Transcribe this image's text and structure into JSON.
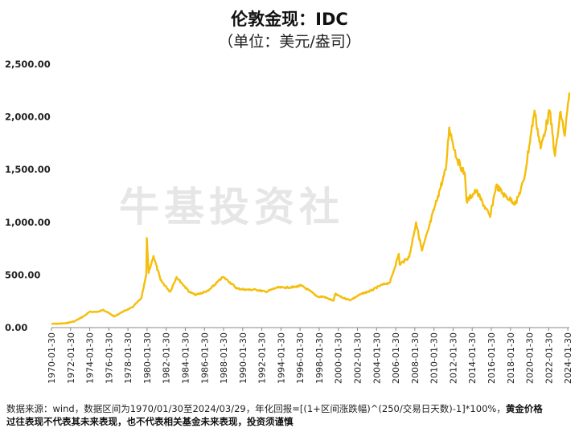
{
  "chart_data": {
    "type": "line",
    "title": "伦敦金现：IDC",
    "subtitle": "（单位：美元/盎司）",
    "ylabel": "",
    "xlabel": "",
    "ylim": [
      0,
      2500
    ],
    "xlim": [
      "1970-01-30",
      "2024-03-29"
    ],
    "y_ticks": [
      "0.00",
      "500.00",
      "1,000.00",
      "1,500.00",
      "2,000.00",
      "2,500.00"
    ],
    "x_ticks": [
      "1970-01-30",
      "1972-01-30",
      "1974-01-30",
      "1976-01-30",
      "1978-01-30",
      "1980-01-30",
      "1982-01-30",
      "1984-01-30",
      "1986-01-30",
      "1988-01-30",
      "1990-01-30",
      "1992-01-30",
      "1994-01-30",
      "1996-01-30",
      "1998-01-30",
      "2000-01-30",
      "2002-01-30",
      "2004-01-30",
      "2006-01-30",
      "2008-01-30",
      "2010-01-30",
      "2012-01-30",
      "2014-01-30",
      "2016-01-30",
      "2018-01-30",
      "2020-01-30",
      "2022-01-30",
      "2024-01-30"
    ],
    "grid": false,
    "color": "#F5BE0B",
    "series": [
      {
        "x": [
          "1970-01-30",
          "1971-06-30",
          "1972-06-30",
          "1973-06-30",
          "1974-01-30",
          "1974-12-30",
          "1975-06-30",
          "1976-08-30",
          "1977-06-30",
          "1978-06-30",
          "1979-06-30",
          "1979-12-30",
          "1980-01-21",
          "1980-03-30",
          "1980-09-30",
          "1981-06-30",
          "1982-06-30",
          "1983-02-28",
          "1984-06-30",
          "1985-02-28",
          "1986-06-30",
          "1987-12-30",
          "1988-06-30",
          "1989-06-30",
          "1990-06-30",
          "1991-06-30",
          "1992-06-30",
          "1993-08-30",
          "1994-06-30",
          "1995-06-30",
          "1996-02-28",
          "1997-01-30",
          "1997-12-30",
          "1998-06-30",
          "1999-07-30",
          "1999-10-05",
          "2000-06-30",
          "2001-04-30",
          "2002-06-30",
          "2003-06-30",
          "2004-06-30",
          "2005-06-30",
          "2006-05-30",
          "2006-06-30",
          "2007-06-30",
          "2008-03-17",
          "2008-10-30",
          "2009-06-30",
          "2010-06-30",
          "2011-04-30",
          "2011-09-05",
          "2012-06-30",
          "2013-04-30",
          "2013-06-30",
          "2014-06-30",
          "2015-12-15",
          "2016-07-30",
          "2017-06-30",
          "2018-08-30",
          "2019-06-30",
          "2020-08-06",
          "2021-03-30",
          "2022-03-08",
          "2022-09-30",
          "2023-05-03",
          "2023-10-05",
          "2024-03-29"
        ],
        "values": [
          35,
          40,
          60,
          110,
          150,
          150,
          170,
          105,
          150,
          190,
          280,
          500,
          850,
          520,
          680,
          450,
          340,
          480,
          340,
          310,
          350,
          480,
          450,
          370,
          360,
          360,
          340,
          380,
          380,
          385,
          400,
          350,
          290,
          295,
          255,
          320,
          285,
          262,
          320,
          350,
          400,
          430,
          700,
          600,
          670,
          1000,
          730,
          930,
          1250,
          1500,
          1900,
          1600,
          1450,
          1200,
          1300,
          1050,
          1350,
          1250,
          1180,
          1400,
          2060,
          1700,
          2060,
          1630,
          2050,
          1820,
          2230
        ]
      }
    ],
    "watermark": "牛基投资社"
  },
  "footer": {
    "line1_plain": "数据来源：wind，数据区间为1970/01/30至2024/03/29，年化回报=[(1+区间涨跌幅)^(250/交易日天数)-1]*100%，",
    "line1_bold": "黄金价格",
    "line2_bold": "过往表现不代表其未来表现，也不代表相关基金未来表现，投资须谨慎"
  }
}
